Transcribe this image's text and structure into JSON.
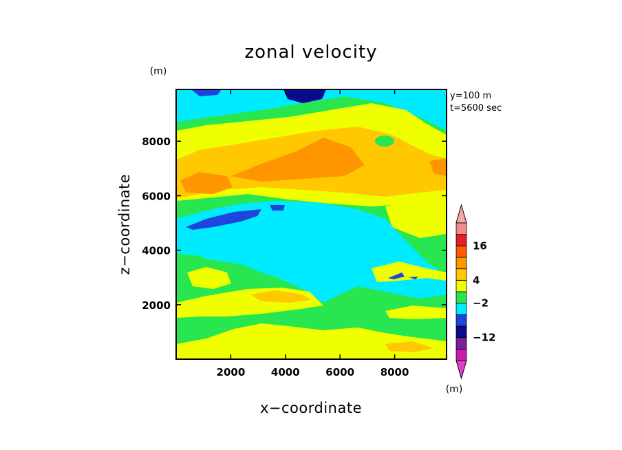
{
  "chart_data": {
    "type": "heatmap",
    "title": "zonal velocity",
    "xlabel": "x−coordinate",
    "ylabel": "z−coordinate",
    "y_unit": "(m)",
    "colorbar_unit": "(m)",
    "annotation_lines": [
      "y=100 m",
      "t=5600 sec"
    ],
    "xlim": [
      0,
      9900
    ],
    "ylim": [
      0,
      9900
    ],
    "x_ticks": [
      2000,
      4000,
      6000,
      8000
    ],
    "y_ticks": [
      2000,
      4000,
      6000,
      8000
    ],
    "x_tick_labels": [
      "2000",
      "4000",
      "6000",
      "8000"
    ],
    "y_tick_labels": [
      "2000",
      "4000",
      "6000",
      "8000"
    ],
    "colorbar": {
      "levels": [
        {
          "color": "#c81eaa"
        },
        {
          "color": "#7d1e9b"
        },
        {
          "color": "#0a0a8c"
        },
        {
          "color": "#1e46dc"
        },
        {
          "color": "#00ebff"
        },
        {
          "color": "#28e650"
        },
        {
          "color": "#f0ff00"
        },
        {
          "color": "#ffc800"
        },
        {
          "color": "#ff9600"
        },
        {
          "color": "#ff5a00"
        },
        {
          "color": "#e61e1e"
        },
        {
          "color": "#f08c8c"
        }
      ],
      "extend_low_color": "#e141c8",
      "extend_high_color": "#f5aaaa",
      "tick_labels": [
        {
          "label": "16",
          "boundary": 10
        },
        {
          "label": "4",
          "boundary": 7
        },
        {
          "label": "−2",
          "boundary": 5
        },
        {
          "label": "−12",
          "boundary": 2
        }
      ]
    },
    "field_colors": {
      "cyan": "#00ebff",
      "green": "#28e650",
      "yellow": "#f0ff00",
      "lightorange": "#ffc800",
      "orange": "#ff9600",
      "blue": "#1e46dc",
      "navy": "#0a0a8c"
    }
  }
}
